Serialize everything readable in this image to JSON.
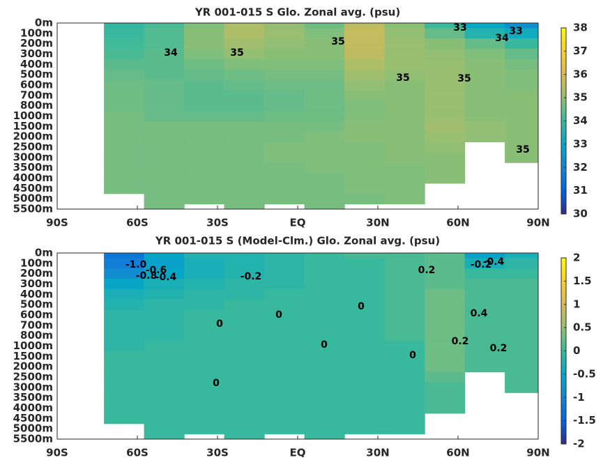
{
  "chart_data": [
    {
      "type": "contour",
      "title": "YR 001-015 S Glo. Zonal avg. (psu)",
      "x": [
        -80,
        -65,
        -50,
        -35,
        -20,
        -5,
        10,
        25,
        40,
        55,
        70,
        85
      ],
      "xlim": [
        -90,
        90
      ],
      "xticks": [
        {
          "value": -90,
          "label": "90S"
        },
        {
          "value": -60,
          "label": "60S"
        },
        {
          "value": -30,
          "label": "30S"
        },
        {
          "value": 0,
          "label": "EQ"
        },
        {
          "value": 30,
          "label": "30N"
        },
        {
          "value": 60,
          "label": "60N"
        },
        {
          "value": 90,
          "label": "90N"
        }
      ],
      "y_categories": [
        "0m",
        "100m",
        "200m",
        "300m",
        "400m",
        "500m",
        "600m",
        "700m",
        "800m",
        "1000m",
        "1500m",
        "2000m",
        "2500m",
        "3000m",
        "3500m",
        "4000m",
        "4500m",
        "5000m",
        "5500m"
      ],
      "values": [
        [
          null,
          33.9,
          34.2,
          34.8,
          35.4,
          35.0,
          34.6,
          35.6,
          34.9,
          34.0,
          33.0,
          32.3
        ],
        [
          null,
          34.0,
          34.3,
          34.9,
          35.4,
          35.1,
          34.8,
          35.7,
          35.0,
          34.5,
          33.6,
          33.2
        ],
        [
          null,
          34.1,
          34.3,
          34.9,
          35.2,
          35.0,
          34.9,
          35.7,
          35.1,
          34.9,
          34.5,
          34.0
        ],
        [
          null,
          34.2,
          34.4,
          34.8,
          35.0,
          34.9,
          34.9,
          35.6,
          35.1,
          35.0,
          34.8,
          34.5
        ],
        [
          null,
          34.4,
          34.4,
          34.6,
          34.8,
          34.8,
          34.8,
          35.4,
          35.1,
          35.1,
          34.9,
          34.7
        ],
        [
          null,
          34.5,
          34.4,
          34.5,
          34.6,
          34.7,
          34.7,
          35.2,
          35.0,
          35.1,
          34.9,
          34.8
        ],
        [
          null,
          34.6,
          34.5,
          34.4,
          34.5,
          34.6,
          34.6,
          35.0,
          34.9,
          35.1,
          34.9,
          34.8
        ],
        [
          null,
          34.6,
          34.5,
          34.4,
          34.4,
          34.5,
          34.6,
          34.9,
          34.9,
          35.1,
          34.9,
          34.9
        ],
        [
          null,
          34.6,
          34.5,
          34.4,
          34.4,
          34.5,
          34.6,
          34.8,
          34.9,
          35.1,
          34.9,
          34.9
        ],
        [
          null,
          34.7,
          34.5,
          34.5,
          34.5,
          34.6,
          34.6,
          34.8,
          34.9,
          35.1,
          34.9,
          34.9
        ],
        [
          null,
          34.7,
          34.7,
          34.7,
          34.7,
          34.7,
          34.7,
          34.9,
          34.9,
          35.2,
          35.0,
          34.9
        ],
        [
          null,
          34.7,
          34.7,
          34.7,
          34.7,
          34.7,
          34.8,
          34.9,
          34.9,
          35.1,
          35.0,
          34.9
        ],
        [
          null,
          34.7,
          34.7,
          34.7,
          34.7,
          34.8,
          34.8,
          34.8,
          34.9,
          35.0,
          null,
          34.9
        ],
        [
          null,
          34.7,
          34.7,
          34.7,
          34.7,
          34.8,
          34.8,
          34.8,
          34.9,
          34.9,
          null,
          34.9
        ],
        [
          null,
          34.7,
          34.7,
          34.7,
          34.7,
          34.7,
          34.8,
          34.8,
          34.8,
          34.9,
          null,
          null
        ],
        [
          null,
          34.7,
          34.7,
          34.7,
          34.7,
          34.7,
          34.7,
          34.8,
          34.8,
          34.9,
          null,
          null
        ],
        [
          null,
          34.7,
          34.7,
          34.7,
          34.7,
          34.7,
          34.7,
          34.8,
          34.8,
          null,
          null,
          null
        ],
        [
          null,
          null,
          34.7,
          34.7,
          34.7,
          34.7,
          34.7,
          34.7,
          34.8,
          null,
          null,
          null
        ],
        [
          null,
          null,
          34.7,
          null,
          34.7,
          null,
          34.7,
          null,
          null,
          null,
          null,
          null
        ]
      ],
      "zlim": [
        30,
        38
      ],
      "zticks": [
        30,
        31,
        32,
        33,
        34,
        35,
        36,
        37,
        38
      ],
      "colormap": [
        "#352a87",
        "#0363e1",
        "#1485d4",
        "#06a7c6",
        "#38b99e",
        "#92bf73",
        "#d9ba56",
        "#fcce2e",
        "#f9fb0e"
      ],
      "contour_labels": [
        "33",
        "33",
        "34",
        "34",
        "35",
        "35",
        "35",
        "35",
        "35"
      ]
    },
    {
      "type": "contour",
      "title": "YR 001-015 S (Model-Clm.) Glo. Zonal avg. (psu)",
      "x": [
        -80,
        -65,
        -50,
        -35,
        -20,
        -5,
        10,
        25,
        40,
        55,
        70,
        85
      ],
      "xlim": [
        -90,
        90
      ],
      "xticks": [
        {
          "value": -90,
          "label": "90S"
        },
        {
          "value": -60,
          "label": "60S"
        },
        {
          "value": -30,
          "label": "30S"
        },
        {
          "value": 0,
          "label": "EQ"
        },
        {
          "value": 30,
          "label": "30N"
        },
        {
          "value": 60,
          "label": "60N"
        },
        {
          "value": 90,
          "label": "90N"
        }
      ],
      "y_categories": [
        "0m",
        "100m",
        "200m",
        "300m",
        "400m",
        "500m",
        "600m",
        "700m",
        "800m",
        "1000m",
        "1500m",
        "2000m",
        "2500m",
        "3000m",
        "3500m",
        "4000m",
        "4500m",
        "5000m",
        "5500m"
      ],
      "values": [
        [
          null,
          -1.2,
          -0.5,
          -0.2,
          -0.2,
          -0.1,
          0.0,
          0.1,
          0.1,
          0.2,
          -0.6,
          -0.3
        ],
        [
          null,
          -1.1,
          -0.6,
          -0.3,
          -0.2,
          -0.1,
          0.0,
          0.0,
          0.1,
          0.2,
          -0.3,
          -0.1
        ],
        [
          null,
          -0.9,
          -0.5,
          -0.3,
          -0.2,
          -0.1,
          0.0,
          0.0,
          0.1,
          0.2,
          0.0,
          0.0
        ],
        [
          null,
          -0.5,
          -0.3,
          -0.2,
          -0.1,
          -0.1,
          0.0,
          0.0,
          0.1,
          0.2,
          0.1,
          0.1
        ],
        [
          null,
          -0.3,
          -0.2,
          -0.1,
          -0.1,
          0.0,
          0.0,
          0.0,
          0.1,
          0.3,
          0.1,
          0.1
        ],
        [
          null,
          -0.2,
          -0.1,
          -0.1,
          0.0,
          0.0,
          0.0,
          0.0,
          0.1,
          0.3,
          0.1,
          0.1
        ],
        [
          null,
          -0.1,
          -0.1,
          0.0,
          0.0,
          0.0,
          0.0,
          0.0,
          0.1,
          0.3,
          0.1,
          0.1
        ],
        [
          null,
          -0.1,
          -0.1,
          0.0,
          0.0,
          0.0,
          0.0,
          0.0,
          0.1,
          0.3,
          0.1,
          0.1
        ],
        [
          null,
          -0.1,
          -0.1,
          0.0,
          0.0,
          0.0,
          0.0,
          0.0,
          0.1,
          0.3,
          0.1,
          0.1
        ],
        [
          null,
          -0.1,
          0.0,
          0.0,
          0.0,
          0.0,
          0.0,
          0.0,
          0.0,
          0.3,
          0.1,
          0.1
        ],
        [
          null,
          0.0,
          0.0,
          0.0,
          0.0,
          0.0,
          0.0,
          0.0,
          0.0,
          0.3,
          0.1,
          0.1
        ],
        [
          null,
          0.0,
          0.0,
          0.0,
          0.0,
          0.0,
          0.0,
          0.0,
          0.0,
          0.3,
          0.1,
          0.1
        ],
        [
          null,
          0.0,
          0.0,
          0.0,
          0.0,
          0.0,
          0.0,
          0.0,
          0.0,
          0.2,
          null,
          0.1
        ],
        [
          null,
          0.0,
          0.0,
          0.0,
          0.0,
          0.0,
          0.0,
          0.0,
          0.0,
          0.1,
          null,
          0.1
        ],
        [
          null,
          0.0,
          0.0,
          0.0,
          0.0,
          0.0,
          0.0,
          0.0,
          0.0,
          0.1,
          null,
          null
        ],
        [
          null,
          0.0,
          0.0,
          0.0,
          0.0,
          0.0,
          0.0,
          0.0,
          0.0,
          0.1,
          null,
          null
        ],
        [
          null,
          0.0,
          0.0,
          0.0,
          0.0,
          0.0,
          0.0,
          0.0,
          0.0,
          null,
          null,
          null
        ],
        [
          null,
          null,
          0.0,
          0.0,
          0.0,
          0.0,
          0.0,
          0.0,
          0.0,
          null,
          null,
          null
        ],
        [
          null,
          null,
          0.0,
          null,
          0.0,
          null,
          0.0,
          null,
          null,
          null,
          null,
          null
        ]
      ],
      "zlim": [
        -2,
        2
      ],
      "zticks": [
        -2,
        -1.5,
        -1,
        -0.5,
        0,
        0.5,
        1,
        1.5,
        2
      ],
      "colormap": [
        "#352a87",
        "#0363e1",
        "#1485d4",
        "#06a7c6",
        "#38b99e",
        "#92bf73",
        "#d9ba56",
        "#fcce2e",
        "#f9fb0e"
      ],
      "contour_labels": [
        "-1.0",
        "-0.8",
        "-0.6",
        "-0.4",
        "-0.2",
        "0",
        "0",
        "0",
        "0",
        "0",
        "0",
        "0.2",
        "0.2",
        "0.4",
        "0.2",
        "-0.2",
        "-0.4"
      ]
    }
  ]
}
